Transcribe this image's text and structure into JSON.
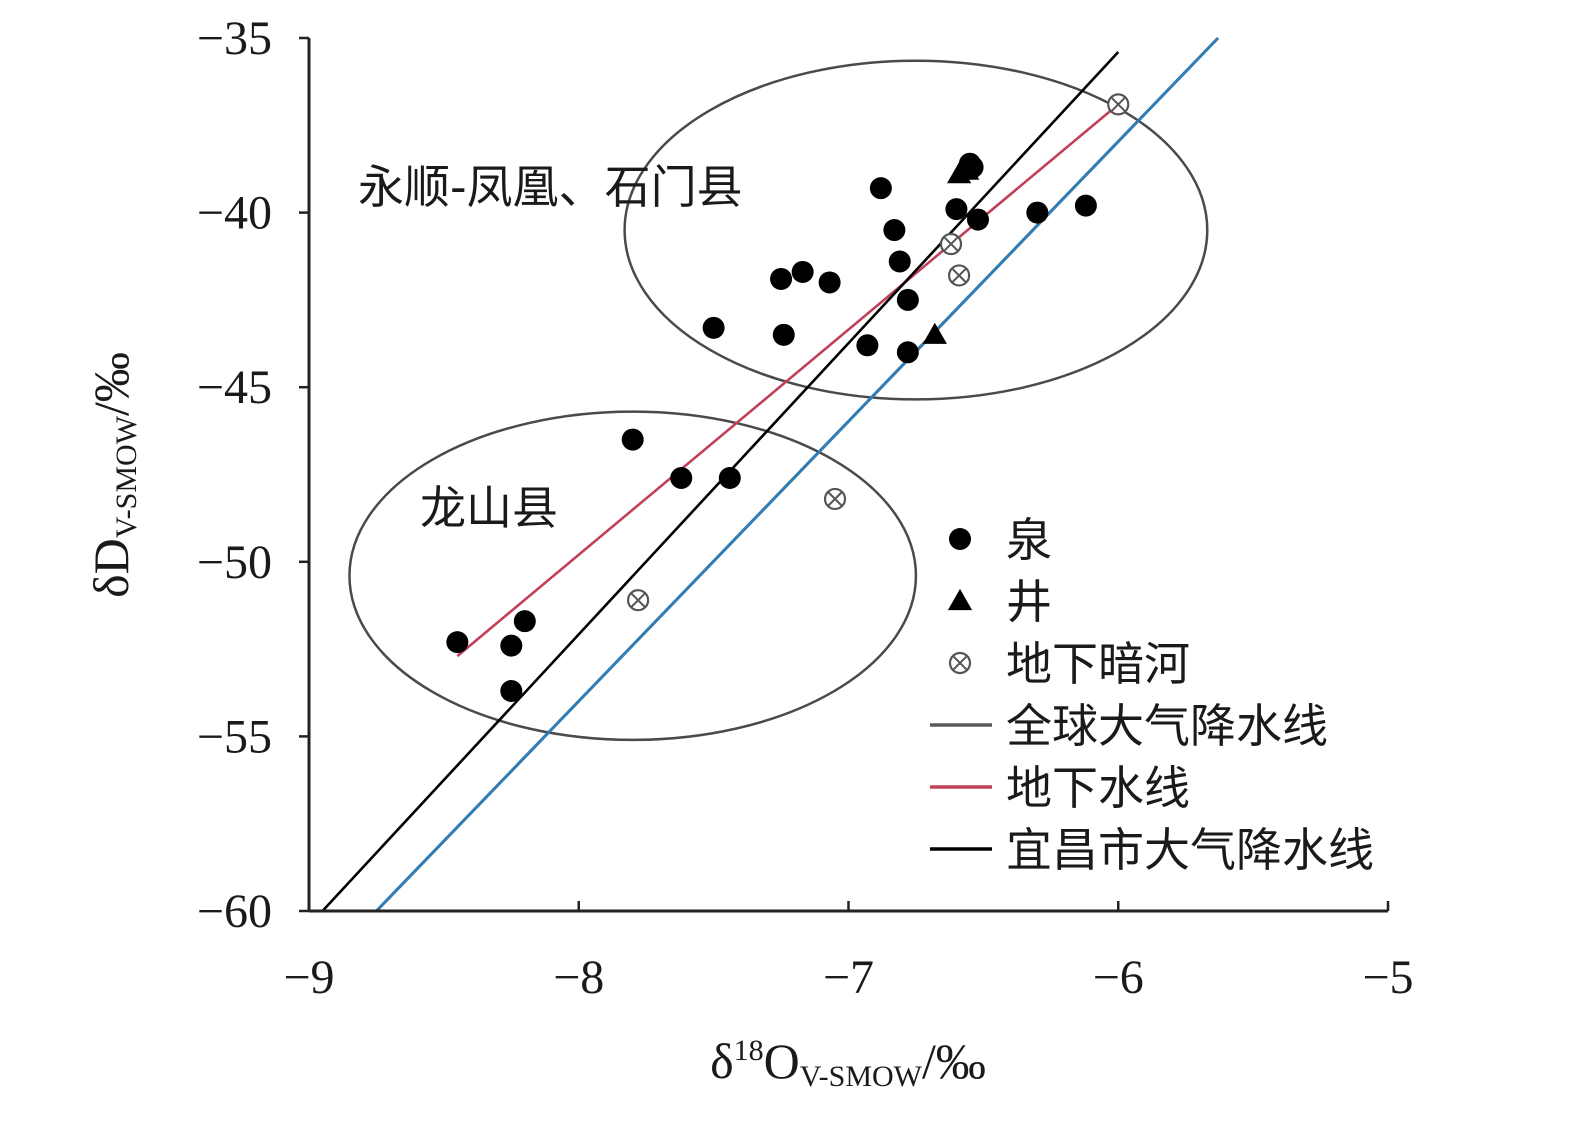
{
  "chart_data": {
    "type": "scatter",
    "title": "",
    "xlabel": {
      "main": "δ",
      "sup": "18",
      "main2": "O",
      "sub": "V-SMOW",
      "unit": "/‰"
    },
    "ylabel": {
      "main": "δD",
      "sub": "V-SMOW",
      "unit": "/‰"
    },
    "xlim": [
      -9,
      -5
    ],
    "ylim": [
      -60,
      -35
    ],
    "x_ticks": [
      -9,
      -8,
      -7,
      -6,
      -5
    ],
    "y_ticks": [
      -60,
      -55,
      -50,
      -45,
      -40,
      -35
    ],
    "x_tick_labels": [
      "−9",
      "−8",
      "−7",
      "−6",
      "−5"
    ],
    "y_tick_labels": [
      "−60",
      "−55",
      "−50",
      "−45",
      "−40",
      "−35"
    ],
    "grid": false,
    "legend_position": "right",
    "series": [
      {
        "name": "泉",
        "marker": "circle",
        "color": "#000000",
        "points": [
          [
            -6.88,
            -39.3
          ],
          [
            -6.55,
            -38.6
          ],
          [
            -6.54,
            -38.7
          ],
          [
            -6.6,
            -39.9
          ],
          [
            -6.52,
            -40.2
          ],
          [
            -6.3,
            -40.0
          ],
          [
            -6.12,
            -39.8
          ],
          [
            -6.83,
            -40.5
          ],
          [
            -6.81,
            -41.4
          ],
          [
            -7.25,
            -41.9
          ],
          [
            -7.17,
            -41.7
          ],
          [
            -7.07,
            -42.0
          ],
          [
            -6.78,
            -42.5
          ],
          [
            -7.5,
            -43.3
          ],
          [
            -7.24,
            -43.5
          ],
          [
            -6.93,
            -43.8
          ],
          [
            -6.78,
            -44.0
          ],
          [
            -7.8,
            -46.5
          ],
          [
            -7.62,
            -47.6
          ],
          [
            -7.44,
            -47.6
          ],
          [
            -8.45,
            -52.3
          ],
          [
            -8.2,
            -51.7
          ],
          [
            -8.25,
            -52.4
          ],
          [
            -8.25,
            -53.7
          ]
        ]
      },
      {
        "name": "井",
        "marker": "triangle",
        "color": "#000000",
        "points": [
          [
            -6.59,
            -38.9
          ],
          [
            -6.56,
            -38.8
          ],
          [
            -6.68,
            -43.5
          ]
        ]
      },
      {
        "name": "地下暗河",
        "marker": "circle-cross",
        "color": "#555555",
        "points": [
          [
            -6.0,
            -36.9
          ],
          [
            -6.62,
            -40.9
          ],
          [
            -6.59,
            -41.8
          ],
          [
            -7.05,
            -48.2
          ],
          [
            -7.78,
            -51.1
          ]
        ]
      }
    ],
    "lines": [
      {
        "name": "全球大气降水线",
        "color": "#5a5a5a",
        "x": [
          -8.75,
          -5.63
        ],
        "y": [
          -60,
          -35
        ]
      },
      {
        "name": "全球大气降水线",
        "color": "#2a7fbf",
        "x": [
          -8.75,
          -5.63
        ],
        "y": [
          -60,
          -35
        ],
        "legend": false
      },
      {
        "name": "地下水线",
        "color": "#c0405a",
        "x": [
          -8.45,
          -6.0
        ],
        "y": [
          -52.7,
          -36.9
        ]
      },
      {
        "name": "宜昌市大气降水线",
        "color": "#000000",
        "x": [
          -8.95,
          -6.0
        ],
        "y": [
          -60,
          -35.4
        ]
      }
    ],
    "ellipses": [
      {
        "label": "永顺-凤凰、石门县",
        "cx": -6.75,
        "cy": -40.5,
        "rx": 1.08,
        "ry": 4.85
      },
      {
        "label": "龙山县",
        "cx": -7.8,
        "cy": -50.4,
        "rx": 1.05,
        "ry": 4.7
      }
    ],
    "annotations": [
      "永顺-凤凰、石门县",
      "龙山县"
    ],
    "legend": [
      {
        "label": "泉",
        "symbol": "circle"
      },
      {
        "label": "井",
        "symbol": "triangle"
      },
      {
        "label": "地下暗河",
        "symbol": "circle-cross"
      },
      {
        "label": "全球大气降水线",
        "symbol": "line",
        "color": "#5a5a5a"
      },
      {
        "label": "地下水线",
        "symbol": "line",
        "color": "#c0405a"
      },
      {
        "label": "宜昌市大气降水线",
        "symbol": "line",
        "color": "#000000"
      }
    ]
  }
}
